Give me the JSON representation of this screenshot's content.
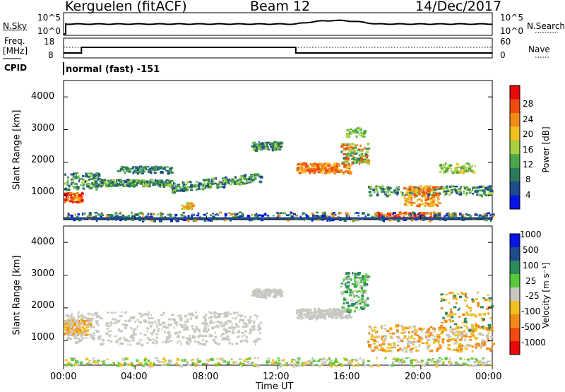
{
  "header": {
    "radar": "Kerguelen (fitACF)",
    "beam": "Beam 12",
    "date": "14/Dec/2017"
  },
  "top_panel": {
    "left_label": "N.Sky",
    "right_label": "N.Search",
    "left_ticks": [
      "10^5",
      "10^0"
    ],
    "right_ticks": [
      "10^5",
      "10^0"
    ]
  },
  "freq_panel": {
    "left_label_1": "Freq.",
    "left_label_2": "[MHz]",
    "left_ticks": [
      "18",
      "8"
    ],
    "right_ticks": [
      "60",
      "0"
    ],
    "right_label": "Nave"
  },
  "cpid": {
    "label": "CPID",
    "mode": "normal (fast) -151"
  },
  "colors": {
    "power": [
      "#0a14e6",
      "#1f4a8c",
      "#2a7a5a",
      "#4aa84a",
      "#a8d040",
      "#f0c020",
      "#f08a18",
      "#f04a10",
      "#e60a0a"
    ],
    "velocity": [
      "#e60a0a",
      "#f04a10",
      "#f08a18",
      "#f0c020",
      "#c8c8c0",
      "#5ac83c",
      "#2a8a5a",
      "#1f4a8c",
      "#0a14e6"
    ]
  },
  "chart_data": [
    {
      "type": "heatmap",
      "name": "power",
      "ylabel": "Slant Range [km]",
      "yticks": [
        "1000",
        "2000",
        "3000",
        "4000"
      ],
      "xticks": [
        "00:00",
        "04:00",
        "08:00",
        "12:00",
        "16:00",
        "20:00",
        "00:00"
      ],
      "colorbar_label": "Power [dB]",
      "colorbar_ticks": [
        "4",
        "8",
        "12",
        "16",
        "20",
        "24",
        "28"
      ]
    },
    {
      "type": "heatmap",
      "name": "velocity",
      "ylabel": "Slant Range [km]",
      "yticks": [
        "1000",
        "2000",
        "3000",
        "4000"
      ],
      "xticks": [
        "00:00",
        "04:00",
        "08:00",
        "12:00",
        "16:00",
        "20:00",
        "00:00"
      ],
      "xlabel": "Time UT",
      "colorbar_label": "Velocity [m s⁻¹]",
      "colorbar_ticks": [
        "-1000",
        "-500",
        "-100",
        "-25",
        "25",
        "100",
        "500",
        "1000"
      ]
    }
  ]
}
